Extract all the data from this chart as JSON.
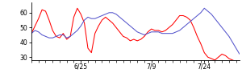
{
  "title": "",
  "xlim": [
    0,
    59
  ],
  "ylim": [
    28,
    67
  ],
  "yticks": [
    30,
    40,
    50,
    60
  ],
  "xtick_positions": [
    14,
    34,
    49
  ],
  "xtick_labels": [
    "6/25",
    "7/9",
    "7/24"
  ],
  "line_color_red": "#ff0000",
  "line_color_blue": "#5555cc",
  "background_color": "#ffffff",
  "red": [
    46,
    51,
    56,
    62,
    61,
    55,
    48,
    44,
    43,
    46,
    42,
    44,
    57,
    63,
    59,
    53,
    36,
    33,
    46,
    51,
    55,
    57,
    55,
    53,
    50,
    47,
    44,
    43,
    41,
    42,
    41,
    42,
    44,
    47,
    49,
    48,
    48,
    47,
    48,
    50,
    52,
    55,
    58,
    58,
    57,
    55,
    50,
    44,
    39,
    33,
    30,
    29,
    28,
    30,
    32,
    31,
    29,
    28,
    27,
    26
  ],
  "blue": [
    46,
    48,
    47,
    45,
    44,
    43,
    43,
    44,
    45,
    45,
    43,
    44,
    46,
    48,
    51,
    55,
    57,
    56,
    56,
    57,
    58,
    59,
    60,
    60,
    59,
    57,
    55,
    53,
    51,
    49,
    47,
    46,
    45,
    46,
    47,
    47,
    47,
    46,
    46,
    46,
    46,
    47,
    48,
    50,
    52,
    54,
    56,
    58,
    60,
    63,
    61,
    59,
    56,
    53,
    50,
    47,
    44,
    40,
    36,
    32
  ]
}
